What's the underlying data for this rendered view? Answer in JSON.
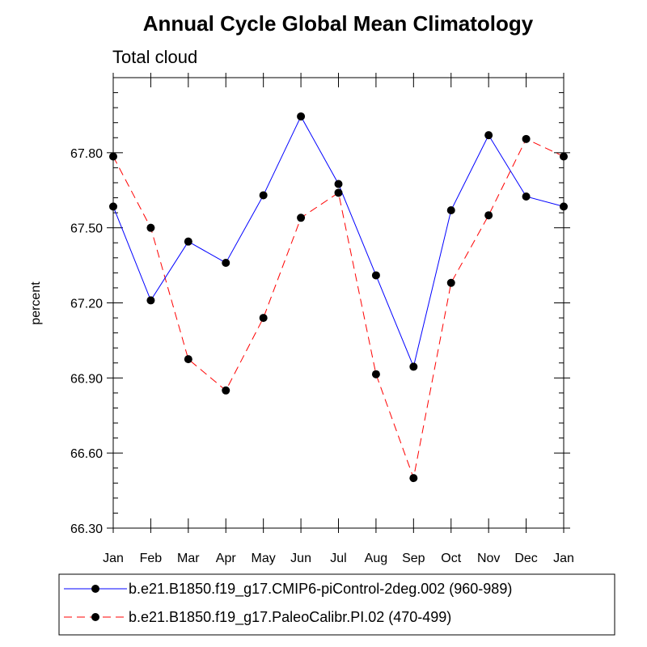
{
  "chart_data": {
    "type": "line",
    "title": "Annual Cycle Global Mean Climatology",
    "subtitle": "Total cloud",
    "xlabel": "",
    "ylabel": "percent",
    "categories": [
      "Jan",
      "Feb",
      "Mar",
      "Apr",
      "May",
      "Jun",
      "Jul",
      "Aug",
      "Sep",
      "Oct",
      "Nov",
      "Dec",
      "Jan"
    ],
    "ylim": [
      66.3,
      68.1
    ],
    "yticks": [
      "66.30",
      "66.60",
      "66.90",
      "67.20",
      "67.50",
      "67.80"
    ],
    "series": [
      {
        "name": "b.e21.B1850.f19_g17.CMIP6-piControl-2deg.002 (960-989)",
        "color": "#0000ff",
        "dash": "solid",
        "values": [
          67.585,
          67.21,
          67.445,
          67.36,
          67.63,
          67.945,
          67.675,
          67.31,
          66.945,
          67.57,
          67.87,
          67.625,
          67.585
        ]
      },
      {
        "name": "b.e21.B1850.f19_g17.PaleoCalibr.PI.02 (470-499)",
        "color": "#ff0000",
        "dash": "dashed",
        "values": [
          67.785,
          67.5,
          66.975,
          66.85,
          67.14,
          67.54,
          67.64,
          66.915,
          66.5,
          67.28,
          67.55,
          67.855,
          67.785
        ]
      }
    ],
    "grid": false,
    "legend_position": "bottom"
  }
}
